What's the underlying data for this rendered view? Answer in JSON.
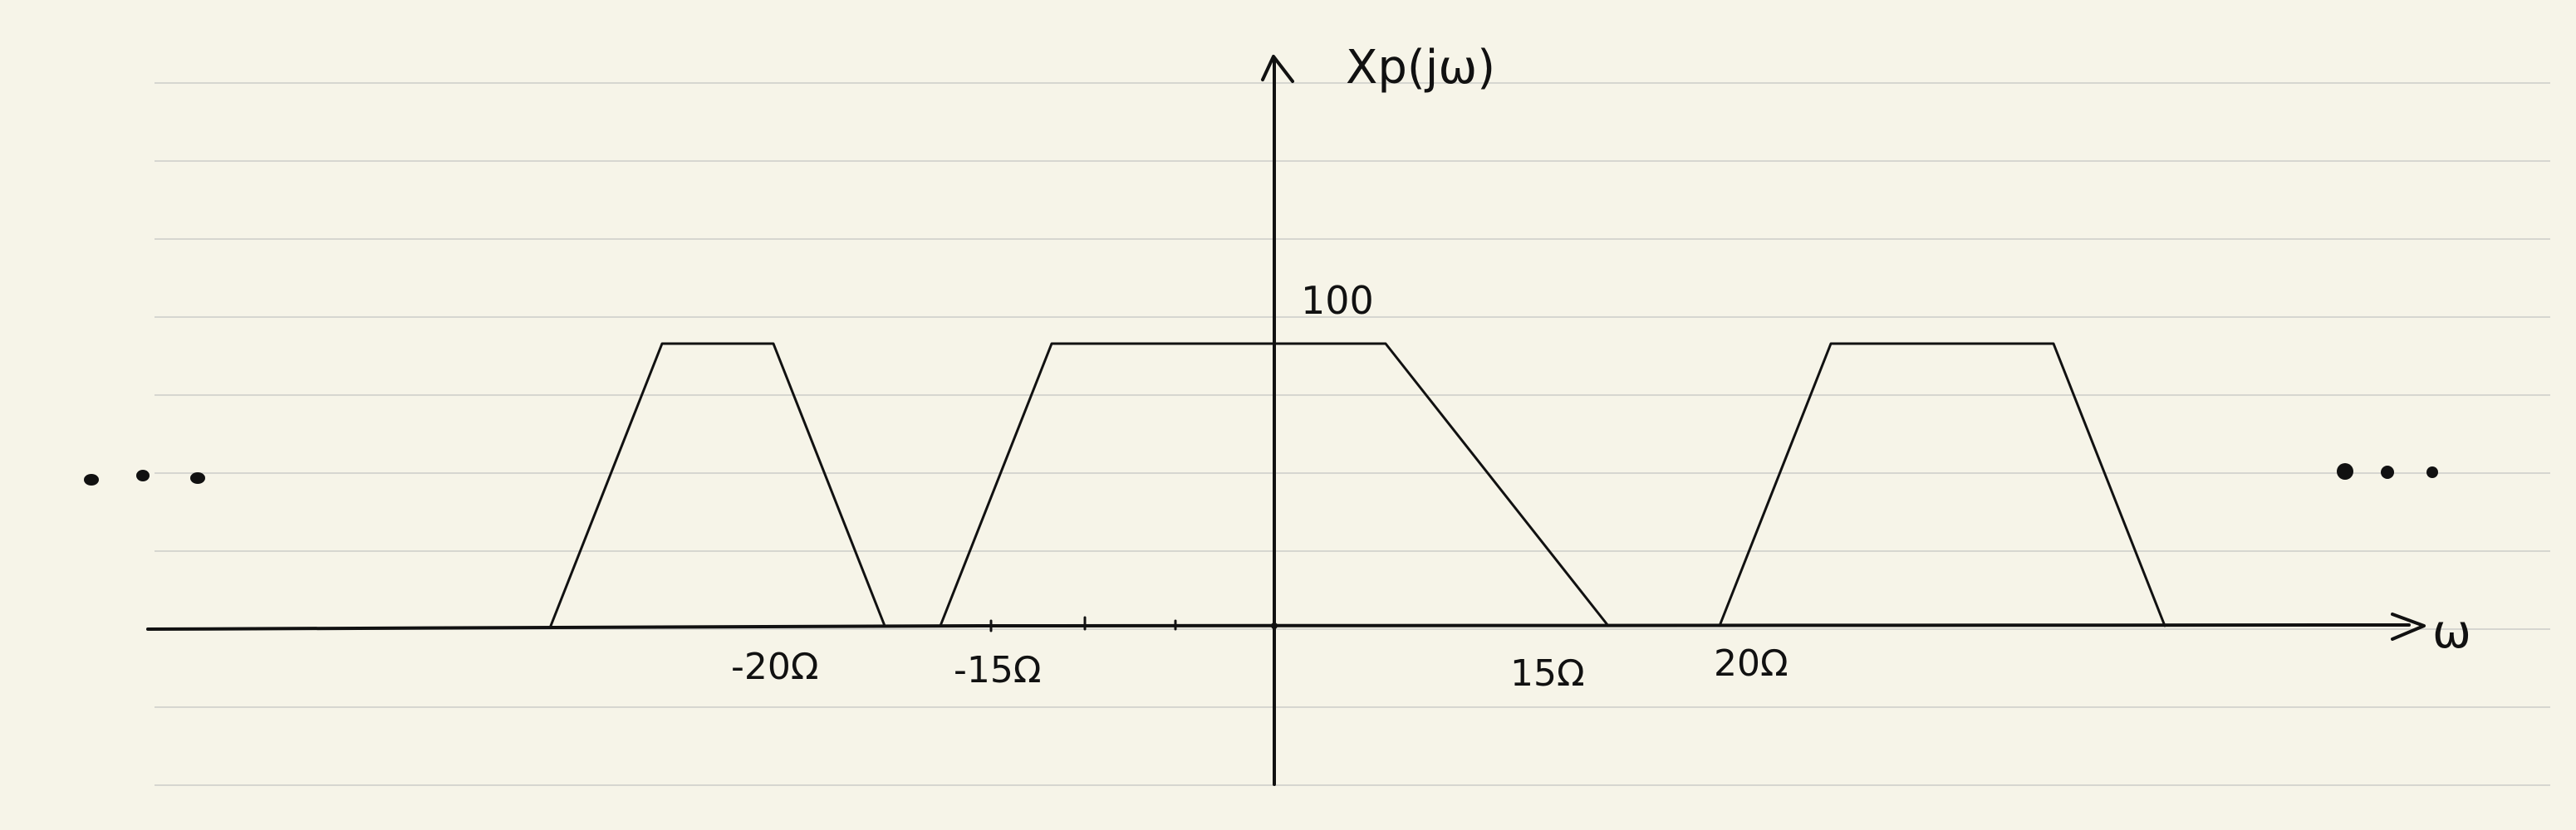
{
  "figure": {
    "y_label": "Xp(jω)",
    "x_label": "ω",
    "peak_label": "100",
    "continuation": "…"
  },
  "chart_data": {
    "type": "line",
    "title": "",
    "xlabel": "ω",
    "ylabel": "Xp(jω)",
    "peak_value": 100,
    "tick_labels": [
      "-20Ω",
      "-15Ω",
      "15Ω",
      "20Ω"
    ],
    "series": [
      {
        "x": [
          -32.5,
          -27.5,
          -22.5,
          -17.5
        ],
        "y": [
          0,
          100,
          100,
          0
        ]
      },
      {
        "x": [
          -15,
          -10,
          5,
          15
        ],
        "y": [
          0,
          100,
          100,
          0
        ]
      },
      {
        "x": [
          20,
          25,
          35,
          40
        ],
        "y": [
          0,
          100,
          100,
          0
        ]
      }
    ]
  },
  "colors": {
    "background": "#f6f4e8",
    "ink": "#111111",
    "rule": "#d6d6d0"
  }
}
